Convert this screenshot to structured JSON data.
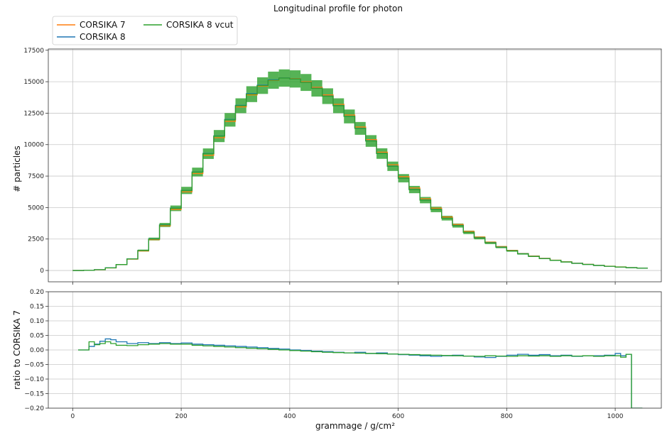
{
  "figure": {
    "title": "Longitudinal profile for photon"
  },
  "legend": {
    "placement": "top-left",
    "columns": 2,
    "items": [
      {
        "label": "CORSIKA 7",
        "color": "#ff7f0e"
      },
      {
        "label": "CORSIKA 8",
        "color": "#1f77b4"
      },
      {
        "label": "CORSIKA 8 vcut",
        "color": "#2ca02c"
      }
    ]
  },
  "chart_data": [
    {
      "type": "line",
      "panel": "top",
      "drawstyle": "steps",
      "ylabel": "# particles",
      "xlim": [
        -45,
        1085
      ],
      "ylim": [
        -900,
        17600
      ],
      "xticks": [
        0,
        200,
        400,
        600,
        800,
        1000
      ],
      "yticks": [
        0,
        2500,
        5000,
        7500,
        10000,
        12500,
        15000,
        17500
      ],
      "ytick_labels": [
        "0",
        "2500",
        "5000",
        "7500",
        "10000",
        "12500",
        "15000",
        "17500"
      ],
      "grid": true,
      "error_band": {
        "series": "CORSIKA 8 vcut",
        "color": "#2ca02c",
        "relative_halfwidth": 0.045
      },
      "x": [
        0,
        20,
        40,
        60,
        80,
        100,
        120,
        140,
        160,
        180,
        200,
        220,
        240,
        260,
        280,
        300,
        320,
        340,
        360,
        380,
        400,
        420,
        440,
        460,
        480,
        500,
        520,
        540,
        560,
        580,
        600,
        620,
        640,
        660,
        680,
        700,
        720,
        740,
        760,
        780,
        800,
        820,
        840,
        860,
        880,
        900,
        920,
        940,
        960,
        980,
        1000,
        1020,
        1040
      ],
      "series": [
        {
          "name": "CORSIKA 7",
          "color": "#ff7f0e",
          "values": [
            0,
            10,
            60,
            200,
            460,
            900,
            1550,
            2450,
            3550,
            4850,
            6250,
            7700,
            9150,
            10550,
            11850,
            13000,
            13950,
            14650,
            15100,
            15300,
            15250,
            15000,
            14550,
            13950,
            13200,
            12350,
            11400,
            10400,
            9400,
            8400,
            7450,
            6550,
            5700,
            4950,
            4250,
            3650,
            3100,
            2650,
            2250,
            1900,
            1600,
            1350,
            1150,
            970,
            820,
            690,
            580,
            490,
            410,
            340,
            280,
            230,
            190
          ]
        },
        {
          "name": "CORSIKA 8",
          "color": "#1f77b4",
          "values": [
            0,
            10,
            65,
            210,
            475,
            925,
            1590,
            2510,
            3630,
            4950,
            6370,
            7830,
            9300,
            10700,
            12000,
            13120,
            14050,
            14720,
            15150,
            15300,
            15230,
            14950,
            14480,
            13860,
            13100,
            12250,
            11300,
            10300,
            9300,
            8290,
            7340,
            6440,
            5600,
            4860,
            4170,
            3580,
            3040,
            2600,
            2210,
            1860,
            1570,
            1330,
            1130,
            950,
            805,
            680,
            570,
            480,
            402,
            335,
            276,
            226,
            187
          ]
        },
        {
          "name": "CORSIKA 8 vcut",
          "color": "#2ca02c",
          "values": [
            0,
            10,
            65,
            206,
            471,
            918,
            1585,
            2500,
            3615,
            4940,
            6360,
            7820,
            9280,
            10680,
            11970,
            13090,
            14010,
            14690,
            15120,
            15290,
            15220,
            14940,
            14470,
            13850,
            13090,
            12240,
            11290,
            10290,
            9290,
            8280,
            7330,
            6430,
            5590,
            4850,
            4160,
            3570,
            3030,
            2590,
            2200,
            1855,
            1565,
            1325,
            1125,
            947,
            802,
            677,
            568,
            478,
            400,
            334,
            275,
            225,
            186
          ]
        }
      ]
    },
    {
      "type": "line",
      "panel": "bottom",
      "drawstyle": "steps",
      "xlabel": "grammage / g/cm²",
      "ylabel": "ratio to CORSIKA 7",
      "xlim": [
        -45,
        1085
      ],
      "ylim": [
        -0.2,
        0.2
      ],
      "xticks": [
        0,
        200,
        400,
        600,
        800,
        1000
      ],
      "yticks": [
        -0.2,
        -0.15,
        -0.1,
        -0.05,
        0.0,
        0.05,
        0.1,
        0.15,
        0.2
      ],
      "xtick_labels": [
        "0",
        "200",
        "400",
        "600",
        "800",
        "1000"
      ],
      "ytick_labels": [
        "−0.20",
        "−0.15",
        "−0.10",
        "−0.05",
        "0.00",
        "0.05",
        "0.10",
        "0.15",
        "0.20"
      ],
      "grid": true,
      "x": [
        10,
        30,
        40,
        50,
        60,
        70,
        80,
        100,
        120,
        140,
        160,
        180,
        200,
        220,
        240,
        260,
        280,
        300,
        320,
        340,
        360,
        380,
        400,
        420,
        440,
        460,
        480,
        500,
        520,
        540,
        560,
        580,
        600,
        620,
        640,
        660,
        680,
        700,
        720,
        740,
        760,
        780,
        800,
        820,
        840,
        860,
        880,
        900,
        920,
        940,
        960,
        980,
        1000,
        1010,
        1020,
        1030
      ],
      "series": [
        {
          "name": "CORSIKA 8",
          "color": "#1f77b4",
          "values": [
            0.0,
            0.012,
            0.02,
            0.03,
            0.038,
            0.035,
            0.028,
            0.022,
            0.025,
            0.022,
            0.025,
            0.022,
            0.024,
            0.02,
            0.018,
            0.016,
            0.014,
            0.012,
            0.01,
            0.008,
            0.005,
            0.003,
            0.0,
            -0.002,
            -0.004,
            -0.006,
            -0.008,
            -0.01,
            -0.008,
            -0.012,
            -0.01,
            -0.014,
            -0.016,
            -0.018,
            -0.02,
            -0.022,
            -0.02,
            -0.018,
            -0.021,
            -0.024,
            -0.026,
            -0.022,
            -0.018,
            -0.015,
            -0.018,
            -0.016,
            -0.02,
            -0.018,
            -0.022,
            -0.02,
            -0.02,
            -0.018,
            -0.012,
            -0.02,
            -0.015,
            -0.2
          ]
        },
        {
          "name": "CORSIKA 8 vcut",
          "color": "#2ca02c",
          "values": [
            0.0,
            0.028,
            0.018,
            0.022,
            0.028,
            0.022,
            0.016,
            0.015,
            0.018,
            0.02,
            0.022,
            0.02,
            0.02,
            0.016,
            0.014,
            0.012,
            0.01,
            0.008,
            0.006,
            0.004,
            0.002,
            0.0,
            -0.002,
            -0.004,
            -0.006,
            -0.008,
            -0.009,
            -0.01,
            -0.011,
            -0.012,
            -0.013,
            -0.014,
            -0.015,
            -0.016,
            -0.017,
            -0.018,
            -0.019,
            -0.02,
            -0.021,
            -0.022,
            -0.02,
            -0.021,
            -0.022,
            -0.02,
            -0.021,
            -0.02,
            -0.022,
            -0.02,
            -0.021,
            -0.02,
            -0.022,
            -0.02,
            -0.02,
            -0.025,
            -0.015,
            -0.2
          ]
        }
      ]
    }
  ]
}
